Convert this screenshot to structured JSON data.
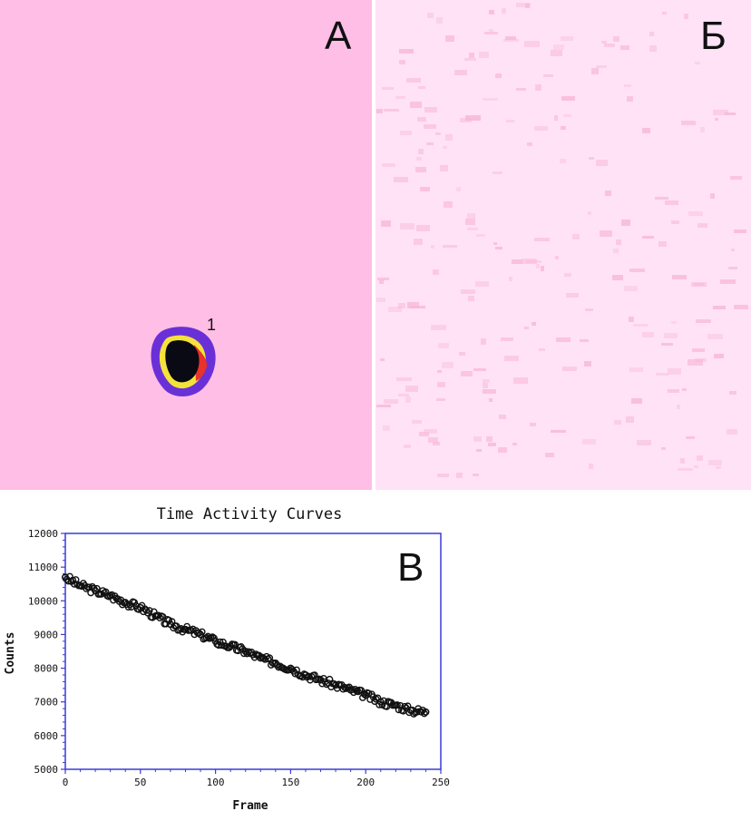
{
  "panels": {
    "a": {
      "letter": "А",
      "roi_label": "1",
      "background": "#ffbee6"
    },
    "b": {
      "letter": "Б",
      "background": "#ffe2f5",
      "speckle": "#f8b8d9"
    },
    "c": {
      "letter": "В"
    }
  },
  "colors": {
    "axis": "#3a3ad8",
    "marker": "#111111",
    "roi_outer": "#6a30d8",
    "roi_ring_yellow": "#f4e23a",
    "roi_ring_red": "#e8322a",
    "roi_core": "#0a0a14"
  },
  "chart_data": {
    "type": "scatter",
    "title": "Time Activity Curves",
    "xlabel": "Frame",
    "ylabel": "Counts",
    "xlim": [
      0,
      250
    ],
    "ylim": [
      5000,
      12000
    ],
    "xticks": [
      "0",
      "50",
      "100",
      "150",
      "200",
      "250"
    ],
    "yticks": [
      "5000",
      "6000",
      "7000",
      "8000",
      "9000",
      "10000",
      "11000",
      "12000"
    ],
    "marker": "open-circle",
    "series": [
      {
        "x": [
          0,
          10,
          20,
          30,
          40,
          50,
          60,
          70,
          80,
          90,
          100,
          110,
          120,
          130,
          140,
          150,
          160,
          170,
          180,
          190,
          200,
          210,
          220,
          230,
          240
        ],
        "values": [
          10700,
          10450,
          10300,
          10150,
          9950,
          9800,
          9550,
          9300,
          9150,
          9000,
          8800,
          8650,
          8500,
          8300,
          8150,
          8000,
          7800,
          7650,
          7500,
          7350,
          7200,
          7000,
          6900,
          6750,
          6700
        ]
      }
    ]
  }
}
